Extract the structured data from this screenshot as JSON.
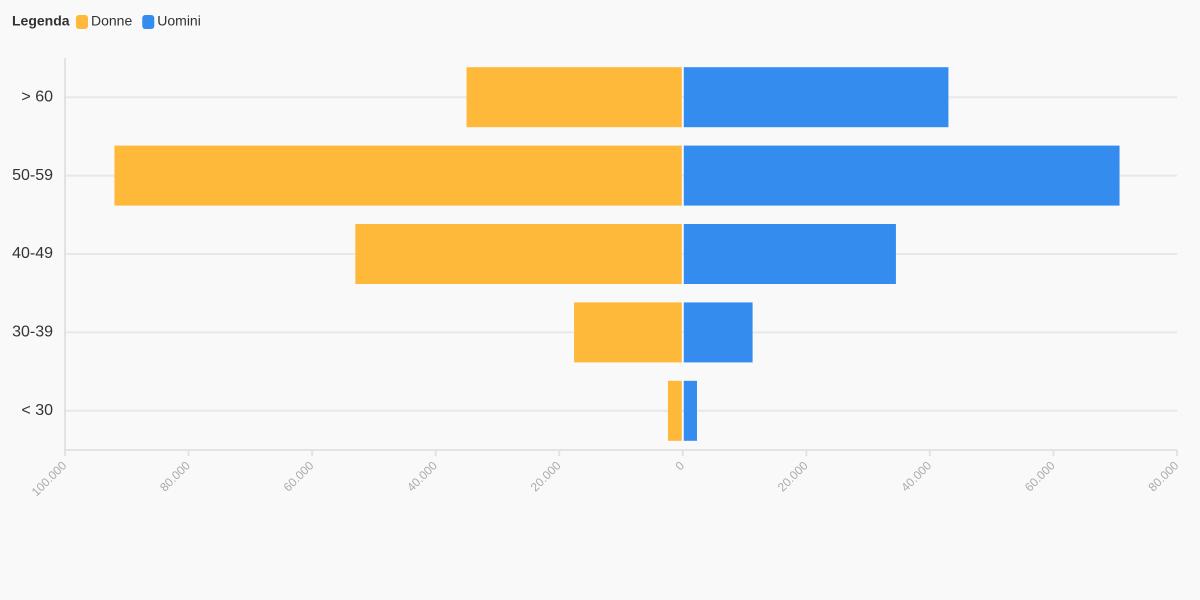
{
  "chart_data": {
    "type": "bar",
    "orientation": "horizontal",
    "legend_title": "Legenda",
    "legend_position": "top-left",
    "categories": [
      "> 60",
      "50-59",
      "40-49",
      "30-39",
      "< 30"
    ],
    "series": [
      {
        "name": "Donne",
        "color": "#ffb93a",
        "values": [
          -35000,
          -92000,
          -53000,
          -17600,
          -2400
        ]
      },
      {
        "name": "Uomini",
        "color": "#348cef",
        "values": [
          43000,
          70700,
          34500,
          11300,
          2300
        ]
      }
    ],
    "xlim": [
      -100000,
      80000
    ],
    "xticks": [
      {
        "value": -100000,
        "label": "100.000"
      },
      {
        "value": -80000,
        "label": "80.000"
      },
      {
        "value": -60000,
        "label": "60.000"
      },
      {
        "value": -40000,
        "label": "40.000"
      },
      {
        "value": -20000,
        "label": "20.000"
      },
      0,
      {
        "value": 20000,
        "label": "20.000"
      },
      {
        "value": 40000,
        "label": "40.000"
      },
      {
        "value": 60000,
        "label": "60.000"
      },
      {
        "value": 80000,
        "label": "80.000"
      }
    ],
    "grid": true
  }
}
